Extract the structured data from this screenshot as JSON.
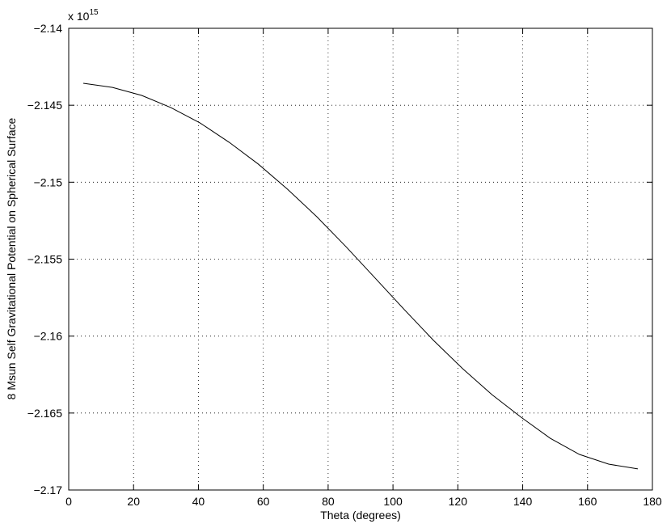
{
  "chart_data": {
    "type": "line",
    "xlabel": "Theta (degrees)",
    "ylabel": "8 Msun Self Gravitational Potential on Spherical Surface",
    "axis_multiplier": {
      "base": "x 10",
      "exponent": "15"
    },
    "x": [
      4.5,
      13.5,
      22.5,
      31.5,
      40.5,
      49.5,
      58.5,
      67.5,
      76.5,
      85.5,
      94.5,
      103.5,
      112.5,
      121.5,
      130.5,
      139.5,
      148.5,
      157.5,
      166.5,
      175.5
    ],
    "values": [
      -2.14357,
      -2.14384,
      -2.14436,
      -2.14515,
      -2.14615,
      -2.14741,
      -2.14883,
      -2.15046,
      -2.15224,
      -2.15419,
      -2.15623,
      -2.15828,
      -2.16028,
      -2.16212,
      -2.1638,
      -2.16527,
      -2.16664,
      -2.16769,
      -2.16832,
      -2.16863
    ],
    "color": "#000000",
    "xlim": [
      0,
      180
    ],
    "xticks": [
      0,
      20,
      40,
      60,
      80,
      100,
      120,
      140,
      160,
      180
    ],
    "ylim": [
      -2.17,
      -2.14
    ],
    "yticks": [
      {
        "value": -2.17,
        "label": "−2.17"
      },
      {
        "value": -2.165,
        "label": "−2.165"
      },
      {
        "value": -2.16,
        "label": "−2.16"
      },
      {
        "value": -2.155,
        "label": "−2.155"
      },
      {
        "value": -2.15,
        "label": "−2.15"
      },
      {
        "value": -2.145,
        "label": "−2.145"
      },
      {
        "value": -2.14,
        "label": "−2.14"
      }
    ],
    "grid": true
  }
}
